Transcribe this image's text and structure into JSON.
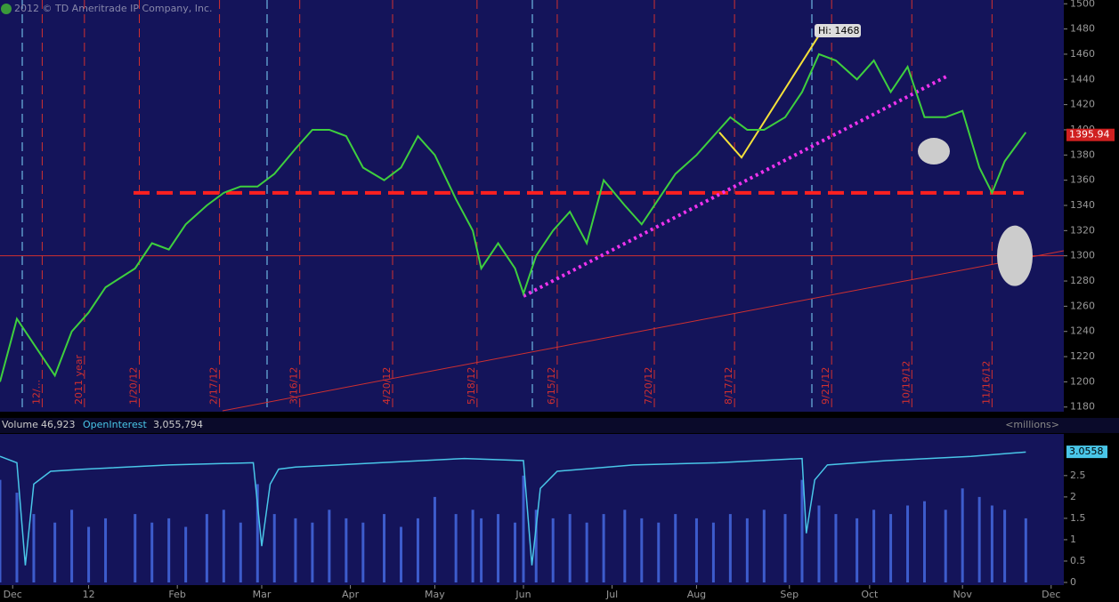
{
  "chart_data": [
    {
      "type": "line",
      "copyright": "2012 © TD Ameritrade IP Company, Inc.",
      "x": [
        0,
        4,
        8,
        13,
        17,
        21,
        25,
        32,
        36,
        40,
        44,
        49,
        53,
        57,
        61,
        65,
        70,
        74,
        78,
        82,
        86,
        91,
        95,
        99,
        103,
        108,
        112,
        114,
        118,
        122,
        124,
        127,
        131,
        135,
        139,
        143,
        148,
        152,
        156,
        160,
        165,
        169,
        173,
        177,
        181,
        186,
        190,
        194,
        198,
        203,
        207,
        211,
        215,
        219,
        224,
        228,
        232,
        235,
        238,
        243
      ],
      "series": [
        {
          "name": "Price",
          "color": "#3ecf3e",
          "values": [
            1200,
            1250,
            1230,
            1205,
            1240,
            1255,
            1275,
            1290,
            1310,
            1305,
            1325,
            1340,
            1350,
            1355,
            1355,
            1365,
            1385,
            1400,
            1400,
            1395,
            1370,
            1360,
            1370,
            1395,
            1380,
            1345,
            1320,
            1290,
            1310,
            1290,
            1270,
            1300,
            1320,
            1335,
            1310,
            1360,
            1340,
            1325,
            1345,
            1365,
            1380,
            1395,
            1410,
            1400,
            1400,
            1410,
            1430,
            1460,
            1455,
            1440,
            1455,
            1430,
            1450,
            1410,
            1410,
            1415,
            1370,
            1350,
            1375,
            1398
          ]
        }
      ],
      "xlim": [
        0,
        252
      ],
      "ylim": [
        1177,
        1503
      ],
      "yticks": [
        1180,
        1200,
        1220,
        1240,
        1260,
        1280,
        1300,
        1320,
        1340,
        1360,
        1380,
        1400,
        1420,
        1440,
        1460,
        1480,
        1500
      ],
      "hlines": [
        1350,
        1300
      ],
      "events": [
        {
          "x": 10,
          "label": "12/..."
        },
        {
          "x": 20,
          "label": "2011 year"
        },
        {
          "x": 33,
          "label": "1/20/12"
        },
        {
          "x": 52,
          "label": "2/17/12"
        },
        {
          "x": 71,
          "label": "3/16/12"
        },
        {
          "x": 93,
          "label": "4/20/12"
        },
        {
          "x": 113,
          "label": "5/18/12"
        },
        {
          "x": 132,
          "label": "6/15/12"
        },
        {
          "x": 155,
          "label": "7/20/12"
        },
        {
          "x": 174,
          "label": "8/17/12"
        },
        {
          "x": 197,
          "label": "9/21/12"
        },
        {
          "x": 216,
          "label": "10/19/12"
        },
        {
          "x": 235,
          "label": "11/16/12"
        }
      ],
      "high_label": "Hi: 1468",
      "last_price": 1395.94
    },
    {
      "type": "bar",
      "volume_label": "Volume",
      "volume": "46,923",
      "oi_label": "OpenInterest",
      "oi": "3,055,794",
      "units": "<millions>",
      "x": [
        0,
        4,
        8,
        13,
        17,
        21,
        25,
        32,
        36,
        40,
        44,
        49,
        53,
        57,
        61,
        65,
        70,
        74,
        78,
        82,
        86,
        91,
        95,
        99,
        103,
        108,
        112,
        114,
        118,
        122,
        124,
        127,
        131,
        135,
        139,
        143,
        148,
        152,
        156,
        160,
        165,
        169,
        173,
        177,
        181,
        186,
        190,
        194,
        198,
        203,
        207,
        211,
        215,
        219,
        224,
        228,
        232,
        235,
        238,
        243
      ],
      "values": [
        2.4,
        2.1,
        1.6,
        1.4,
        1.7,
        1.3,
        1.5,
        1.6,
        1.4,
        1.5,
        1.3,
        1.6,
        1.7,
        1.4,
        2.3,
        1.6,
        1.5,
        1.4,
        1.7,
        1.5,
        1.4,
        1.6,
        1.3,
        1.5,
        2.0,
        1.6,
        1.7,
        1.5,
        1.6,
        1.4,
        2.5,
        1.7,
        1.5,
        1.6,
        1.4,
        1.6,
        1.7,
        1.5,
        1.4,
        1.6,
        1.5,
        1.4,
        1.6,
        1.5,
        1.7,
        1.6,
        2.4,
        1.8,
        1.6,
        1.5,
        1.7,
        1.6,
        1.8,
        1.9,
        1.7,
        2.2,
        2.0,
        1.8,
        1.7,
        1.5
      ],
      "color": "#3d5ccc",
      "oi_x": [
        0,
        4,
        6,
        8,
        12,
        20,
        40,
        60,
        62,
        64,
        66,
        70,
        90,
        110,
        124,
        126,
        128,
        132,
        150,
        170,
        190,
        191,
        193,
        196,
        210,
        230,
        243
      ],
      "oi_values": [
        2.95,
        2.8,
        0.4,
        2.3,
        2.6,
        2.65,
        2.75,
        2.8,
        0.85,
        2.3,
        2.65,
        2.7,
        2.8,
        2.9,
        2.85,
        0.4,
        2.2,
        2.6,
        2.75,
        2.8,
        2.9,
        1.15,
        2.4,
        2.75,
        2.85,
        2.95,
        3.05
      ],
      "oi_color": "#49c6e8",
      "oi_last": 3.0558,
      "xlim": [
        0,
        252
      ],
      "ylim": [
        0,
        3.1
      ],
      "yticks": [
        0,
        0.5,
        1,
        1.5,
        2,
        2.5
      ],
      "xticks": [
        {
          "value": 3,
          "label": "Dec"
        },
        {
          "value": 21,
          "label": "12"
        },
        {
          "value": 42,
          "label": "Feb"
        },
        {
          "value": 62,
          "label": "Mar"
        },
        {
          "value": 83,
          "label": "Apr"
        },
        {
          "value": 103,
          "label": "May"
        },
        {
          "value": 124,
          "label": "Jun"
        },
        {
          "value": 145,
          "label": "Jul"
        },
        {
          "value": 165,
          "label": "Aug"
        },
        {
          "value": 187,
          "label": "Sep"
        },
        {
          "value": 206,
          "label": "Oct"
        },
        {
          "value": 228,
          "label": "Nov"
        },
        {
          "value": 249,
          "label": "Dec"
        }
      ]
    }
  ]
}
